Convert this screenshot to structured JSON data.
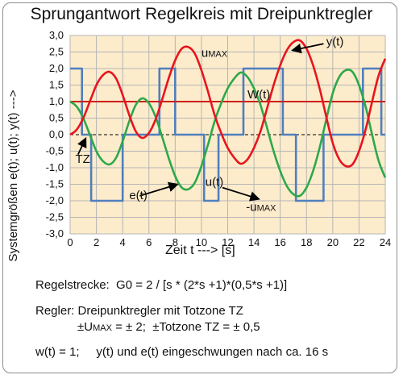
{
  "chart_data": {
    "type": "line",
    "title": "Sprungantwort Regelkreis mit Dreipunktregler",
    "xlabel": "Zeit t ---> [s]",
    "ylabel": "Systemgrößen e(t); u(t); y(t) --->",
    "xlim": [
      0,
      24
    ],
    "ylim": [
      -3,
      3
    ],
    "xticks": [
      0,
      2,
      4,
      6,
      8,
      10,
      12,
      14,
      16,
      18,
      20,
      22,
      24
    ],
    "yticks": [
      "3,0",
      "2,5",
      "2,0",
      "1,5",
      "1,0",
      "0,5",
      "0,0",
      "-0,5",
      "-1,0",
      "-1,5",
      "-2,0",
      "-2,5",
      "-3,0"
    ],
    "grid": true,
    "series": [
      {
        "name": "y(t)",
        "color": "#e8141e",
        "x": [
          0,
          0.5,
          1,
          1.5,
          2,
          2.5,
          3,
          3.5,
          4,
          4.5,
          5,
          5.5,
          6,
          6.5,
          7,
          7.5,
          8,
          8.5,
          9,
          9.5,
          10,
          10.5,
          11,
          11.5,
          12,
          12.5,
          13,
          13.5,
          14,
          14.5,
          15,
          15.5,
          16,
          16.5,
          17,
          17.5,
          18,
          18.5,
          19,
          19.5,
          20,
          20.5,
          21,
          21.5,
          22,
          22.5,
          23,
          23.5,
          24
        ],
        "values": [
          0,
          0.15,
          0.5,
          1.0,
          1.5,
          1.8,
          1.9,
          1.7,
          1.2,
          0.6,
          0.1,
          -0.1,
          0.05,
          0.45,
          1.05,
          1.7,
          2.25,
          2.6,
          2.65,
          2.45,
          1.95,
          1.3,
          0.6,
          0.05,
          -0.4,
          -0.7,
          -0.88,
          -0.75,
          -0.4,
          0.1,
          0.8,
          1.5,
          2.1,
          2.55,
          2.8,
          2.85,
          2.6,
          2.1,
          1.4,
          0.55,
          -0.25,
          -0.75,
          -0.95,
          -0.9,
          -0.5,
          0.15,
          1.0,
          1.8,
          2.3
        ]
      },
      {
        "name": "e(t)",
        "color": "#2ca84b",
        "x": [
          0,
          0.5,
          1,
          1.5,
          2,
          2.5,
          3,
          3.5,
          4,
          4.5,
          5,
          5.5,
          6,
          6.5,
          7,
          7.5,
          8,
          8.5,
          9,
          9.5,
          10,
          10.5,
          11,
          11.5,
          12,
          12.5,
          13,
          13.5,
          14,
          14.5,
          15,
          15.5,
          16,
          16.5,
          17,
          17.5,
          18,
          18.5,
          19,
          19.5,
          20,
          20.5,
          21,
          21.5,
          22,
          22.5,
          23,
          23.5,
          24
        ],
        "values": [
          1.0,
          0.85,
          0.5,
          0.0,
          -0.5,
          -0.8,
          -0.9,
          -0.7,
          -0.2,
          0.4,
          0.9,
          1.1,
          0.95,
          0.55,
          -0.05,
          -0.7,
          -1.25,
          -1.6,
          -1.65,
          -1.45,
          -0.95,
          -0.3,
          0.4,
          0.95,
          1.4,
          1.7,
          1.88,
          1.75,
          1.4,
          0.9,
          0.2,
          -0.5,
          -1.1,
          -1.55,
          -1.8,
          -1.85,
          -1.6,
          -1.1,
          -0.4,
          0.45,
          1.25,
          1.75,
          1.95,
          1.9,
          1.5,
          0.85,
          0.0,
          -0.8,
          -1.3
        ]
      },
      {
        "name": "u(t)",
        "color": "#4f7fbf",
        "step": true,
        "x": [
          0,
          0.9,
          0.9,
          1.6,
          1.6,
          4.0,
          4.0,
          6.8,
          6.8,
          8.0,
          8.0,
          10.2,
          10.2,
          11.3,
          11.3,
          13.2,
          13.2,
          16.2,
          16.2,
          17.2,
          17.2,
          19.3,
          19.3,
          22.3,
          22.3,
          23.7,
          23.7,
          24
        ],
        "values": [
          2,
          2,
          0,
          0,
          -2,
          -2,
          0,
          0,
          2,
          2,
          0,
          0,
          -2,
          -2,
          0,
          0,
          2,
          2,
          0,
          0,
          -2,
          -2,
          0,
          0,
          2,
          2,
          0,
          0
        ]
      },
      {
        "name": "w(t)",
        "color": "#cc1f1a",
        "x": [
          0,
          24
        ],
        "values": [
          1,
          1
        ]
      }
    ],
    "annotations": [
      {
        "text": "y(t)",
        "x": 19.5,
        "y": 2.7
      },
      {
        "text": "u",
        "sub": "MAX",
        "x": 10,
        "y": 2.35
      },
      {
        "text": "W(t)",
        "x": 13.5,
        "y": 1.1
      },
      {
        "text": "TZ",
        "x": 0.4,
        "y": -0.85
      },
      {
        "text": "e(t)",
        "x": 4.5,
        "y": -1.95
      },
      {
        "text": "u(t)",
        "x": 10.3,
        "y": -1.55
      },
      {
        "text": "-u",
        "sub": "MAX",
        "x": 13.4,
        "y": -2.3
      }
    ]
  },
  "info": {
    "line1": "Regelstrecke:  G0 = 2 / [s * (2*s +1)*(0,5*s +1)]",
    "line2": "Regler: Dreipunktregler mit Totzone TZ",
    "line3_a": "±U",
    "line3_sub": "MAX",
    "line3_b": " = ± 2;  ±Totzone TZ = ± 0,5",
    "line4": "w(t) = 1;     y(t) und e(t) eingeschwungen nach ca. 16 s"
  },
  "colors": {
    "plot_bg": "#fdeccb",
    "grid": "#b5b5b5",
    "axis": "#000000"
  }
}
